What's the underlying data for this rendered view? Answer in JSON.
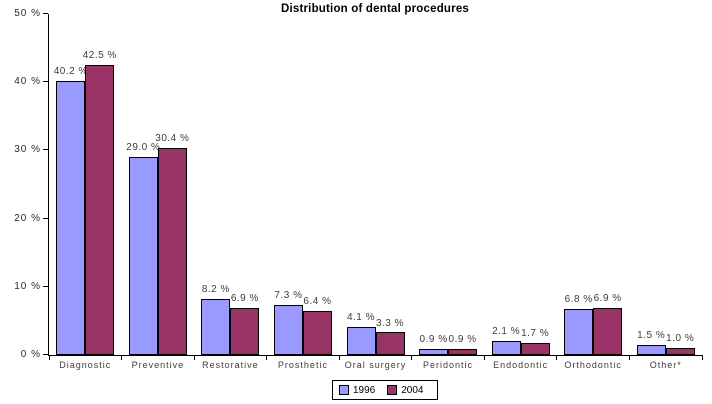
{
  "chart_data": {
    "type": "bar",
    "title": "Distribution of dental procedures",
    "categories": [
      "Diagnostic",
      "Preventive",
      "Restorative",
      "Prosthetic",
      "Oral surgery",
      "Peridontic",
      "Endodontic",
      "Orthodontic",
      "Other*"
    ],
    "series": [
      {
        "name": "1996",
        "color": "#9999FF",
        "values": [
          40.2,
          29.0,
          8.2,
          7.3,
          4.1,
          0.9,
          2.1,
          6.8,
          1.5
        ]
      },
      {
        "name": "2004",
        "color": "#993366",
        "values": [
          42.5,
          30.4,
          6.9,
          6.4,
          3.3,
          0.9,
          1.7,
          6.9,
          1.0
        ]
      }
    ],
    "value_suffix": " %",
    "ylim": [
      0,
      50
    ],
    "yticks": [
      0,
      10,
      20,
      30,
      40,
      50
    ],
    "grid": false,
    "data_labels": true,
    "legend_position": "bottom"
  }
}
